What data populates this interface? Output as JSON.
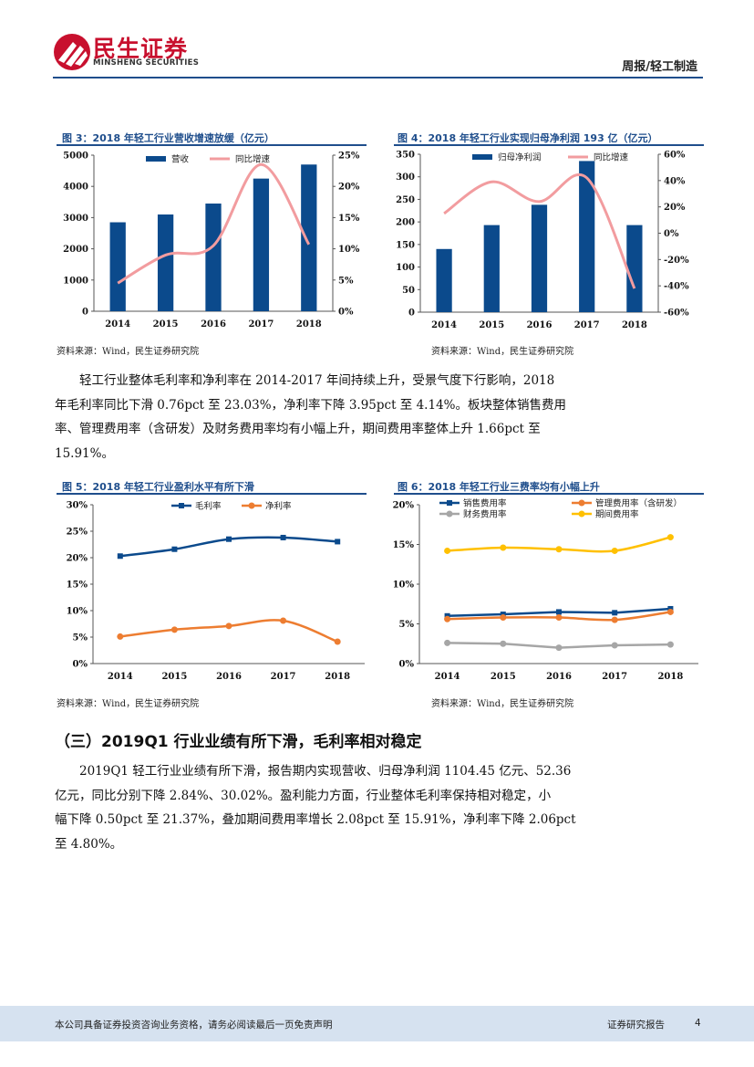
{
  "header": {
    "logo_cn": "民生证券",
    "logo_en": "MINSHENG SECURITIES",
    "report_tag": "周报/轻工制造"
  },
  "colors": {
    "brand_red": "#c8102e",
    "accent_blue": "#1f4e8c",
    "bar_blue": "#0b4a8c",
    "line_pink": "#f29c9f",
    "orange": "#ed7d31",
    "gray": "#a6a6a6",
    "yellow": "#ffc000"
  },
  "figures": [
    {
      "title": "图 3：2018 年轻工行业营收增速放缓（亿元）",
      "source": "资料来源：Wind，民生证券研究院"
    },
    {
      "title": "图 4：2018 年轻工行业实现归母净利润 193 亿（亿元）",
      "source": "资料来源：Wind，民生证券研究院"
    },
    {
      "title": "图 5：2018 年轻工行业盈利水平有所下滑",
      "source": "资料来源：Wind，民生证券研究院"
    },
    {
      "title": "图 6：2018 年轻工行业三费率均有小幅上升",
      "source": "资料来源：Wind，民生证券研究院"
    }
  ],
  "paragraph1": [
    "轻工行业整体毛利率和净利率在 2014-2017 年间持续上升，受景气度下行影响，2018",
    "年毛利率同比下滑 0.76pct 至 23.03%，净利率下降 3.95pct 至 4.14%。板块整体销售费用",
    "率、管理费用率（含研发）及财务费用率均有小幅上升，期间费用率整体上升 1.66pct 至",
    "15.91%。"
  ],
  "section_title": "（三）2019Q1 行业业绩有所下滑，毛利率相对稳定",
  "paragraph2": [
    "2019Q1 轻工行业业绩有所下滑，报告期内实现营收、归母净利润 1104.45 亿元、52.36",
    "亿元，同比分别下降 2.84%、30.02%。盈利能力方面，行业整体毛利率保持相对稳定，小",
    "幅下降 0.50pct 至 21.37%，叠加期间费用率增长 2.08pct 至 15.91%，净利率下降 2.06pct",
    "至 4.80%。"
  ],
  "footer": {
    "disclaimer": "本公司具备证券投资咨询业务资格，请务必阅读最后一页免责声明",
    "report_type": "证券研究报告",
    "page": "4"
  },
  "chart_data": [
    {
      "type": "bar",
      "categories": [
        "2014",
        "2015",
        "2016",
        "2017",
        "2018"
      ],
      "series": [
        {
          "name": "营收",
          "kind": "bar",
          "axis": "left",
          "values": [
            2850,
            3100,
            3450,
            4250,
            4700
          ]
        },
        {
          "name": "同比增速",
          "kind": "line",
          "axis": "right",
          "values": [
            4.5,
            9.0,
            10.5,
            23.5,
            10.7
          ]
        }
      ],
      "ylim_left": [
        0,
        5000
      ],
      "yticks_left": [
        "0",
        "1000",
        "2000",
        "3000",
        "4000",
        "5000"
      ],
      "ylim_right": [
        0,
        25
      ],
      "yticks_right": [
        "0%",
        "5%",
        "10%",
        "15%",
        "20%",
        "25%"
      ],
      "legend": "top"
    },
    {
      "type": "bar",
      "categories": [
        "2014",
        "2015",
        "2016",
        "2017",
        "2018"
      ],
      "series": [
        {
          "name": "归母净利润",
          "kind": "bar",
          "axis": "left",
          "values": [
            140,
            193,
            238,
            335,
            193
          ]
        },
        {
          "name": "同比增速",
          "kind": "line",
          "axis": "right",
          "values": [
            15,
            39,
            24,
            42,
            -42
          ]
        }
      ],
      "ylim_left": [
        0,
        350
      ],
      "yticks_left": [
        "0",
        "50",
        "100",
        "150",
        "200",
        "250",
        "300",
        "350"
      ],
      "ylim_right": [
        -60,
        60
      ],
      "yticks_right": [
        "-60%",
        "-40%",
        "-20%",
        "0%",
        "20%",
        "40%",
        "60%"
      ],
      "legend": "top"
    },
    {
      "type": "line",
      "categories": [
        "2014",
        "2015",
        "2016",
        "2017",
        "2018"
      ],
      "series": [
        {
          "name": "毛利率",
          "values": [
            20.3,
            21.6,
            23.5,
            23.8,
            23.03
          ]
        },
        {
          "name": "净利率",
          "values": [
            5.1,
            6.4,
            7.1,
            8.1,
            4.14
          ]
        }
      ],
      "ylim": [
        0,
        30
      ],
      "yticks": [
        "0%",
        "5%",
        "10%",
        "15%",
        "20%",
        "25%",
        "30%"
      ],
      "legend": "top"
    },
    {
      "type": "line",
      "categories": [
        "2014",
        "2015",
        "2016",
        "2017",
        "2018"
      ],
      "series": [
        {
          "name": "销售费用率",
          "values": [
            6.0,
            6.2,
            6.5,
            6.4,
            6.9
          ]
        },
        {
          "name": "管理费用率（含研发）",
          "values": [
            5.6,
            5.8,
            5.8,
            5.5,
            6.5
          ]
        },
        {
          "name": "财务费用率",
          "values": [
            2.6,
            2.5,
            2.0,
            2.3,
            2.4
          ]
        },
        {
          "name": "期间费用率",
          "values": [
            14.2,
            14.6,
            14.4,
            14.2,
            15.91
          ]
        }
      ],
      "ylim": [
        0,
        20
      ],
      "yticks": [
        "0%",
        "5%",
        "10%",
        "15%",
        "20%"
      ],
      "legend": "top"
    }
  ]
}
